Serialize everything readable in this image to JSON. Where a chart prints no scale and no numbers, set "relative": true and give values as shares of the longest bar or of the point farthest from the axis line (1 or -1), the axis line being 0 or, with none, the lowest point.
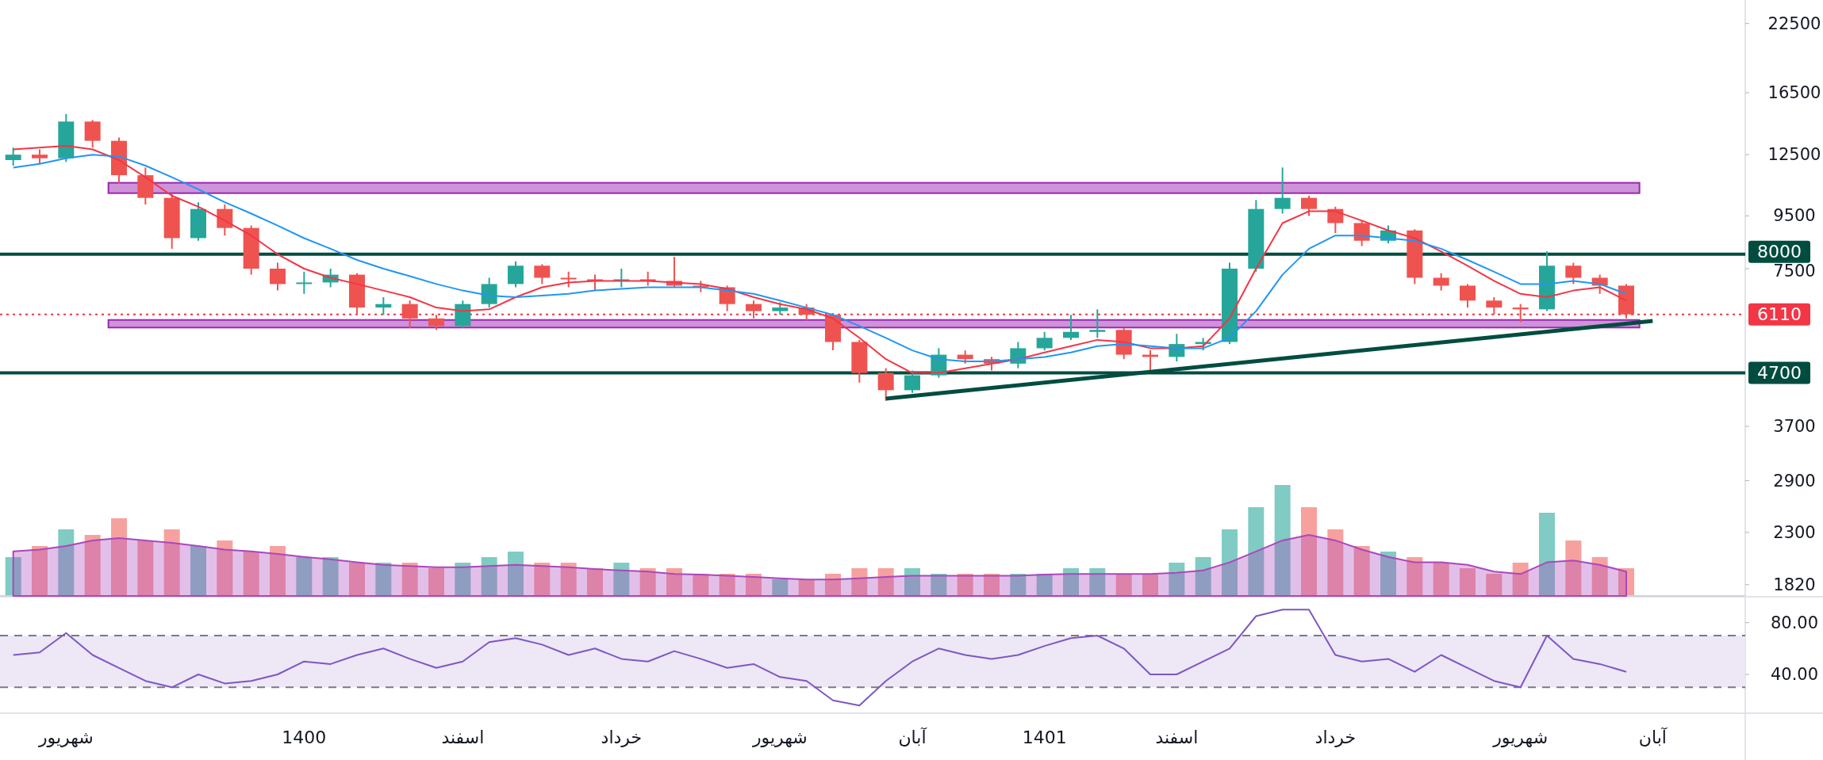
{
  "chart_data": [
    {
      "type": "candlestick",
      "log": true,
      "ylim": [
        1730,
        25000
      ],
      "yticks": [
        1820,
        2300,
        2900,
        3700,
        7500,
        9500,
        12500,
        16500,
        22500
      ],
      "tick_labels": "y",
      "grid": false,
      "categories": [
        null,
        null,
        null,
        null,
        null,
        null,
        null,
        null,
        null,
        null,
        null,
        null,
        null,
        null,
        null,
        null,
        null,
        null,
        null,
        null,
        null,
        null,
        null,
        null,
        null,
        null,
        null,
        null,
        null,
        null,
        null,
        null,
        null,
        null,
        null,
        null,
        null,
        null,
        null,
        null,
        null,
        null,
        null,
        null,
        null,
        null,
        null,
        null,
        null,
        null,
        null,
        null,
        null,
        null,
        null,
        null,
        null,
        null,
        null,
        null,
        null,
        null,
        null,
        null,
        null,
        null
      ],
      "ohlc": [
        [
          12200,
          12900,
          11900,
          12500
        ],
        [
          12500,
          12800,
          12000,
          12300
        ],
        [
          12300,
          15000,
          12100,
          14500
        ],
        [
          14500,
          14600,
          12900,
          13300
        ],
        [
          13300,
          13500,
          11000,
          11400
        ],
        [
          11400,
          11800,
          10000,
          10300
        ],
        [
          10300,
          10500,
          8200,
          8600
        ],
        [
          8600,
          10100,
          8500,
          9800
        ],
        [
          9800,
          10000,
          8700,
          9000
        ],
        [
          9000,
          9100,
          7300,
          7500
        ],
        [
          7500,
          7700,
          6800,
          7000
        ],
        [
          7000,
          7400,
          6700,
          7050
        ],
        [
          7050,
          7500,
          6900,
          7300
        ],
        [
          7300,
          7350,
          6100,
          6300
        ],
        [
          6300,
          6600,
          6100,
          6400
        ],
        [
          6400,
          6500,
          5750,
          6000
        ],
        [
          6000,
          6100,
          5700,
          5800
        ],
        [
          5800,
          6500,
          5750,
          6400
        ],
        [
          6400,
          7200,
          6300,
          7000
        ],
        [
          7000,
          7750,
          6900,
          7600
        ],
        [
          7600,
          7650,
          7000,
          7200
        ],
        [
          7200,
          7400,
          6900,
          7150
        ],
        [
          7150,
          7300,
          6800,
          7100
        ],
        [
          7100,
          7500,
          6900,
          7150
        ],
        [
          7150,
          7400,
          6950,
          7100
        ],
        [
          7100,
          7900,
          6900,
          6950
        ],
        [
          6950,
          7100,
          6750,
          6900
        ],
        [
          6900,
          6950,
          6200,
          6400
        ],
        [
          6400,
          6500,
          6000,
          6200
        ],
        [
          6200,
          6450,
          6100,
          6300
        ],
        [
          6300,
          6400,
          5950,
          6100
        ],
        [
          6100,
          6150,
          5200,
          5400
        ],
        [
          5400,
          5450,
          4500,
          4700
        ],
        [
          4700,
          4800,
          4150,
          4350
        ],
        [
          4350,
          4750,
          4300,
          4650
        ],
        [
          4650,
          5250,
          4600,
          5100
        ],
        [
          5100,
          5200,
          4900,
          5000
        ],
        [
          5000,
          5050,
          4750,
          4900
        ],
        [
          4900,
          5400,
          4800,
          5250
        ],
        [
          5250,
          5650,
          5200,
          5500
        ],
        [
          5500,
          6100,
          5450,
          5650
        ],
        [
          5650,
          6250,
          5500,
          5700
        ],
        [
          5700,
          5750,
          5000,
          5100
        ],
        [
          5100,
          5200,
          4750,
          5050
        ],
        [
          5050,
          5600,
          4950,
          5350
        ],
        [
          5350,
          5500,
          5200,
          5400
        ],
        [
          5400,
          7700,
          5350,
          7500
        ],
        [
          7500,
          10200,
          7400,
          9800
        ],
        [
          9800,
          11800,
          9600,
          10300
        ],
        [
          10300,
          10400,
          9500,
          9800
        ],
        [
          9800,
          9900,
          8800,
          9200
        ],
        [
          9200,
          9300,
          8300,
          8500
        ],
        [
          8500,
          9100,
          8400,
          8900
        ],
        [
          8900,
          8950,
          7000,
          7200
        ],
        [
          7200,
          7350,
          6800,
          6950
        ],
        [
          6950,
          7000,
          6300,
          6500
        ],
        [
          6500,
          6600,
          6100,
          6300
        ],
        [
          6300,
          6400,
          5900,
          6250
        ],
        [
          6250,
          8100,
          6200,
          7600
        ],
        [
          7600,
          7700,
          7000,
          7200
        ],
        [
          7200,
          7300,
          6700,
          6950
        ],
        [
          6950,
          7000,
          6000,
          6110
        ],
        null,
        null,
        null,
        null
      ],
      "colors": [
        "#26a69a",
        "#ef5350",
        "#26a69a",
        "#ef5350",
        "#ef5350",
        "#ef5350",
        "#ef5350",
        "#26a69a",
        "#ef5350",
        "#ef5350",
        "#ef5350",
        "#26a69a",
        "#26a69a",
        "#ef5350",
        "#26a69a",
        "#ef5350",
        "#ef5350",
        "#26a69a",
        "#26a69a",
        "#26a69a",
        "#ef5350",
        "#ef5350",
        "#ef5350",
        "#26a69a",
        "#ef5350",
        "#ef5350",
        "#ef5350",
        "#ef5350",
        "#ef5350",
        "#26a69a",
        "#ef5350",
        "#ef5350",
        "#ef5350",
        "#ef5350",
        "#26a69a",
        "#26a69a",
        "#ef5350",
        "#ef5350",
        "#26a69a",
        "#26a69a",
        "#26a69a",
        "#26a69a",
        "#ef5350",
        "#ef5350",
        "#26a69a",
        "#26a69a",
        "#26a69a",
        "#26a69a",
        "#26a69a",
        "#ef5350",
        "#ef5350",
        "#ef5350",
        "#26a69a",
        "#ef5350",
        "#ef5350",
        "#ef5350",
        "#ef5350",
        "#ef5350",
        "#26a69a",
        "#ef5350",
        "#ef5350",
        "#ef5350",
        null,
        null,
        null,
        null
      ],
      "series": [
        {
          "type": "line",
          "color": "#f23645",
          "values": [
            12800,
            12900,
            13000,
            12800,
            12200,
            11300,
            10400,
            9900,
            9300,
            8700,
            8000,
            7500,
            7200,
            7000,
            6800,
            6600,
            6300,
            6200,
            6250,
            6600,
            6900,
            7050,
            7100,
            7100,
            7100,
            7050,
            7000,
            6850,
            6600,
            6400,
            6250,
            6000,
            5500,
            5000,
            4700,
            4700,
            4800,
            4900,
            5000,
            5150,
            5300,
            5450,
            5400,
            5250,
            5250,
            5300,
            6000,
            7500,
            9200,
            9700,
            9700,
            9300,
            8900,
            8600,
            8100,
            7600,
            7100,
            6700,
            6600,
            6800,
            6900,
            6500,
            null,
            null,
            null,
            null
          ]
        },
        {
          "type": "line",
          "color": "#2196f3",
          "values": [
            11800,
            12000,
            12300,
            12500,
            12400,
            11900,
            11300,
            10700,
            10100,
            9600,
            9100,
            8600,
            8200,
            7800,
            7500,
            7250,
            7000,
            6800,
            6650,
            6600,
            6650,
            6700,
            6800,
            6850,
            6900,
            6900,
            6900,
            6800,
            6700,
            6500,
            6300,
            6100,
            5800,
            5500,
            5200,
            5000,
            4950,
            4950,
            5000,
            5050,
            5150,
            5300,
            5350,
            5300,
            5250,
            5250,
            5500,
            6200,
            7300,
            8200,
            8700,
            8700,
            8600,
            8500,
            8200,
            7800,
            7400,
            7000,
            7000,
            7100,
            7000,
            6700,
            null,
            null,
            null,
            null
          ]
        },
        {
          "type": "line",
          "color": "#004d40",
          "values": [
            null,
            null,
            null,
            null,
            null,
            null,
            null,
            null,
            null,
            null,
            null,
            null,
            null,
            null,
            null,
            null,
            null,
            null,
            null,
            null,
            null,
            null,
            null,
            null,
            null,
            null,
            null,
            null,
            null,
            null,
            null,
            null,
            null,
            4190,
            null,
            null,
            null,
            null,
            null,
            null,
            null,
            null,
            null,
            null,
            null,
            null,
            null,
            null,
            null,
            null,
            null,
            null,
            null,
            null,
            null,
            null,
            null,
            null,
            null,
            null,
            null,
            null,
            5930,
            null,
            null,
            null
          ]
        }
      ],
      "ref_lines": [
        {
          "axis": "y",
          "value": 8000,
          "label": "8000",
          "color": "#004d40"
        },
        {
          "axis": "y",
          "value": 4700,
          "label": "4700",
          "color": "#004d40"
        },
        {
          "axis": "y",
          "value": 6110,
          "label": "6110",
          "color": "#f23645",
          "line_style": "dotted"
        }
      ],
      "bands": [
        {
          "axis": "y",
          "from": 10520,
          "to": 11020,
          "color": "#ce93d8"
        },
        {
          "axis": "y",
          "from": 5760,
          "to": 5960,
          "color": "#ce93d8"
        }
      ]
    },
    {
      "type": "bar",
      "relative": true,
      "tick_labels": false,
      "categories": [
        null,
        null,
        null,
        null,
        null,
        null,
        null,
        null,
        null,
        null,
        null,
        null,
        null,
        null,
        null,
        null,
        null,
        null,
        null,
        null,
        null,
        null,
        null,
        null,
        null,
        null,
        null,
        null,
        null,
        null,
        null,
        null,
        null,
        null,
        null,
        null,
        null,
        null,
        null,
        null,
        null,
        null,
        null,
        null,
        null,
        null,
        null,
        null,
        null,
        null,
        null,
        null,
        null,
        null,
        null,
        null,
        null,
        null,
        null,
        null,
        null,
        null
      ],
      "values": [
        0.35,
        0.45,
        0.6,
        0.55,
        0.7,
        0.5,
        0.6,
        0.45,
        0.5,
        0.4,
        0.45,
        0.35,
        0.35,
        0.3,
        0.3,
        0.3,
        0.25,
        0.3,
        0.35,
        0.4,
        0.3,
        0.3,
        0.25,
        0.3,
        0.25,
        0.25,
        0.2,
        0.2,
        0.2,
        0.15,
        0.15,
        0.2,
        0.25,
        0.25,
        0.25,
        0.2,
        0.2,
        0.2,
        0.2,
        0.2,
        0.25,
        0.25,
        0.2,
        0.2,
        0.3,
        0.35,
        0.6,
        0.8,
        1,
        0.8,
        0.6,
        0.45,
        0.4,
        0.35,
        0.3,
        0.25,
        0.2,
        0.3,
        0.75,
        0.5,
        0.35,
        0.25
      ],
      "colors": [
        "#80cbc4",
        "#f7a19e",
        "#80cbc4",
        "#f7a19e",
        "#f7a19e",
        "#f7a19e",
        "#f7a19e",
        "#80cbc4",
        "#f7a19e",
        "#f7a19e",
        "#f7a19e",
        "#80cbc4",
        "#80cbc4",
        "#f7a19e",
        "#80cbc4",
        "#f7a19e",
        "#f7a19e",
        "#80cbc4",
        "#80cbc4",
        "#80cbc4",
        "#f7a19e",
        "#f7a19e",
        "#f7a19e",
        "#80cbc4",
        "#f7a19e",
        "#f7a19e",
        "#f7a19e",
        "#f7a19e",
        "#f7a19e",
        "#80cbc4",
        "#f7a19e",
        "#f7a19e",
        "#f7a19e",
        "#f7a19e",
        "#80cbc4",
        "#80cbc4",
        "#f7a19e",
        "#f7a19e",
        "#80cbc4",
        "#80cbc4",
        "#80cbc4",
        "#80cbc4",
        "#f7a19e",
        "#f7a19e",
        "#80cbc4",
        "#80cbc4",
        "#80cbc4",
        "#80cbc4",
        "#80cbc4",
        "#f7a19e",
        "#f7a19e",
        "#f7a19e",
        "#80cbc4",
        "#f7a19e",
        "#f7a19e",
        "#f7a19e",
        "#f7a19e",
        "#f7a19e",
        "#80cbc4",
        "#f7a19e",
        "#f7a19e",
        "#f7a19e"
      ]
    },
    {
      "type": "area",
      "relative": true,
      "tick_labels": false,
      "categories": [
        null,
        null,
        null,
        null,
        null,
        null,
        null,
        null,
        null,
        null,
        null,
        null,
        null,
        null,
        null,
        null,
        null,
        null,
        null,
        null,
        null,
        null,
        null,
        null,
        null,
        null,
        null,
        null,
        null,
        null,
        null,
        null,
        null,
        null,
        null,
        null,
        null,
        null,
        null,
        null,
        null,
        null,
        null,
        null,
        null,
        null,
        null,
        null,
        null,
        null,
        null,
        null,
        null,
        null,
        null,
        null,
        null,
        null,
        null,
        null,
        null,
        null
      ],
      "series": [
        {
          "color": "#ab47bc",
          "values": [
            0.73,
            0.76,
            0.82,
            0.91,
            0.95,
            0.91,
            0.87,
            0.82,
            0.76,
            0.73,
            0.69,
            0.64,
            0.6,
            0.55,
            0.51,
            0.49,
            0.47,
            0.47,
            0.49,
            0.51,
            0.49,
            0.47,
            0.44,
            0.42,
            0.4,
            0.36,
            0.35,
            0.33,
            0.31,
            0.29,
            0.27,
            0.27,
            0.29,
            0.31,
            0.33,
            0.33,
            0.33,
            0.33,
            0.33,
            0.35,
            0.36,
            0.36,
            0.36,
            0.36,
            0.38,
            0.42,
            0.55,
            0.73,
            0.91,
            1,
            0.91,
            0.76,
            0.64,
            0.55,
            0.55,
            0.51,
            0.4,
            0.36,
            0.55,
            0.58,
            0.51,
            0.4
          ]
        }
      ]
    },
    {
      "type": "line",
      "ylim": [
        10,
        100
      ],
      "yticks": [
        {
          "value": 40,
          "label": "40.00"
        },
        {
          "value": 80,
          "label": "80.00"
        }
      ],
      "grid": false,
      "categories": [
        null,
        null,
        "شهریور",
        null,
        null,
        null,
        null,
        null,
        null,
        null,
        null,
        "1400",
        null,
        null,
        null,
        null,
        null,
        "اسفند",
        null,
        null,
        null,
        null,
        null,
        "خرداد",
        null,
        null,
        null,
        null,
        null,
        "شهریور",
        null,
        null,
        null,
        null,
        "آبان",
        null,
        null,
        null,
        null,
        "1401",
        null,
        null,
        null,
        null,
        "اسفند",
        null,
        null,
        null,
        null,
        null,
        "خرداد",
        null,
        null,
        null,
        null,
        null,
        null,
        "شهریور",
        null,
        null,
        null,
        null,
        "آبان",
        null,
        null,
        null
      ],
      "series": [
        {
          "color": "#7e57c2",
          "values": [
            55,
            57,
            72,
            55,
            45,
            35,
            30,
            40,
            33,
            35,
            40,
            50,
            48,
            55,
            60,
            52,
            45,
            50,
            65,
            68,
            63,
            55,
            60,
            52,
            50,
            58,
            52,
            45,
            48,
            38,
            35,
            20,
            16,
            35,
            50,
            60,
            55,
            52,
            55,
            62,
            68,
            70,
            60,
            40,
            40,
            50,
            60,
            85,
            90,
            90,
            55,
            50,
            52,
            42,
            55,
            45,
            35,
            30,
            70,
            52,
            48,
            42,
            null,
            null,
            null,
            null
          ]
        }
      ],
      "ref_lines": [
        {
          "axis": "y",
          "value": 70,
          "color": "#787b86",
          "line_style": "dashed"
        },
        {
          "axis": "y",
          "value": 30,
          "color": "#787b86",
          "line_style": "dashed"
        }
      ],
      "bands": [
        {
          "axis": "y",
          "from": 30,
          "to": 70,
          "color": "#ede7f6"
        }
      ]
    }
  ]
}
